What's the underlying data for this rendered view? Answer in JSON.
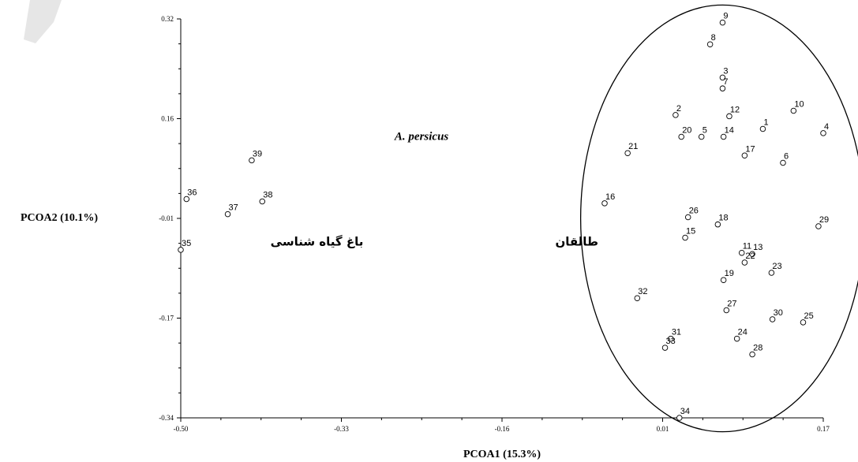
{
  "chart_data": {
    "type": "scatter",
    "title": "",
    "xlabel": "PCOA1 (15.3%)",
    "ylabel": "PCOA2 (10.1%)",
    "xlim": [
      -0.5,
      0.17
    ],
    "ylim": [
      -0.34,
      0.32
    ],
    "xticks": [
      "-0.50",
      "-0.33",
      "-0.16",
      "0.01",
      "0.17"
    ],
    "yticks": [
      "0.32",
      "0.16",
      "-0.01",
      "-0.17",
      "-0.34"
    ],
    "grid": false,
    "annotations": [
      {
        "text": "A. persicus",
        "style": "italic",
        "x": -0.277,
        "y": 0.12
      },
      {
        "text": "باغ گیاه شناسی",
        "style": "arabic",
        "x": -0.358,
        "y": -0.055
      },
      {
        "text": "طالقان",
        "style": "arabic",
        "x": -0.087,
        "y": -0.055
      }
    ],
    "ellipse": {
      "cx": 0.065,
      "cy": -0.01,
      "rx": 0.148,
      "ry": 0.353
    },
    "points": [
      {
        "label": "1",
        "x": 0.107,
        "y": 0.138
      },
      {
        "label": "2",
        "x": 0.016,
        "y": 0.161
      },
      {
        "label": "3",
        "x": 0.065,
        "y": 0.223
      },
      {
        "label": "4",
        "x": 0.17,
        "y": 0.131
      },
      {
        "label": "5",
        "x": 0.043,
        "y": 0.125
      },
      {
        "label": "6",
        "x": 0.128,
        "y": 0.082
      },
      {
        "label": "7",
        "x": 0.065,
        "y": 0.205
      },
      {
        "label": "8",
        "x": 0.052,
        "y": 0.278
      },
      {
        "label": "9",
        "x": 0.065,
        "y": 0.314
      },
      {
        "label": "10",
        "x": 0.139,
        "y": 0.168
      },
      {
        "label": "11",
        "x": 0.085,
        "y": -0.067
      },
      {
        "label": "12",
        "x": 0.072,
        "y": 0.159
      },
      {
        "label": "13",
        "x": 0.096,
        "y": -0.069
      },
      {
        "label": "14",
        "x": 0.066,
        "y": 0.125
      },
      {
        "label": "15",
        "x": 0.026,
        "y": -0.042
      },
      {
        "label": "16",
        "x": -0.058,
        "y": 0.015
      },
      {
        "label": "17",
        "x": 0.088,
        "y": 0.094
      },
      {
        "label": "18",
        "x": 0.06,
        "y": -0.02
      },
      {
        "label": "19",
        "x": 0.066,
        "y": -0.112
      },
      {
        "label": "20",
        "x": 0.022,
        "y": 0.125
      },
      {
        "label": "21",
        "x": -0.034,
        "y": 0.098
      },
      {
        "label": "22",
        "x": 0.088,
        "y": -0.083
      },
      {
        "label": "23",
        "x": 0.116,
        "y": -0.1
      },
      {
        "label": "24",
        "x": 0.08,
        "y": -0.209
      },
      {
        "label": "25",
        "x": 0.149,
        "y": -0.182
      },
      {
        "label": "26",
        "x": 0.029,
        "y": -0.008
      },
      {
        "label": "27",
        "x": 0.069,
        "y": -0.162
      },
      {
        "label": "28",
        "x": 0.096,
        "y": -0.235
      },
      {
        "label": "29",
        "x": 0.165,
        "y": -0.023
      },
      {
        "label": "30",
        "x": 0.117,
        "y": -0.177
      },
      {
        "label": "31",
        "x": 0.011,
        "y": -0.209
      },
      {
        "label": "32",
        "x": -0.024,
        "y": -0.142
      },
      {
        "label": "33",
        "x": 0.005,
        "y": -0.224
      },
      {
        "label": "34",
        "x": 0.02,
        "y": -0.34
      },
      {
        "label": "35",
        "x": -0.5,
        "y": -0.062
      },
      {
        "label": "36",
        "x": -0.494,
        "y": 0.022
      },
      {
        "label": "37",
        "x": -0.451,
        "y": -0.003
      },
      {
        "label": "38",
        "x": -0.415,
        "y": 0.018
      },
      {
        "label": "39",
        "x": -0.426,
        "y": 0.086
      }
    ]
  }
}
